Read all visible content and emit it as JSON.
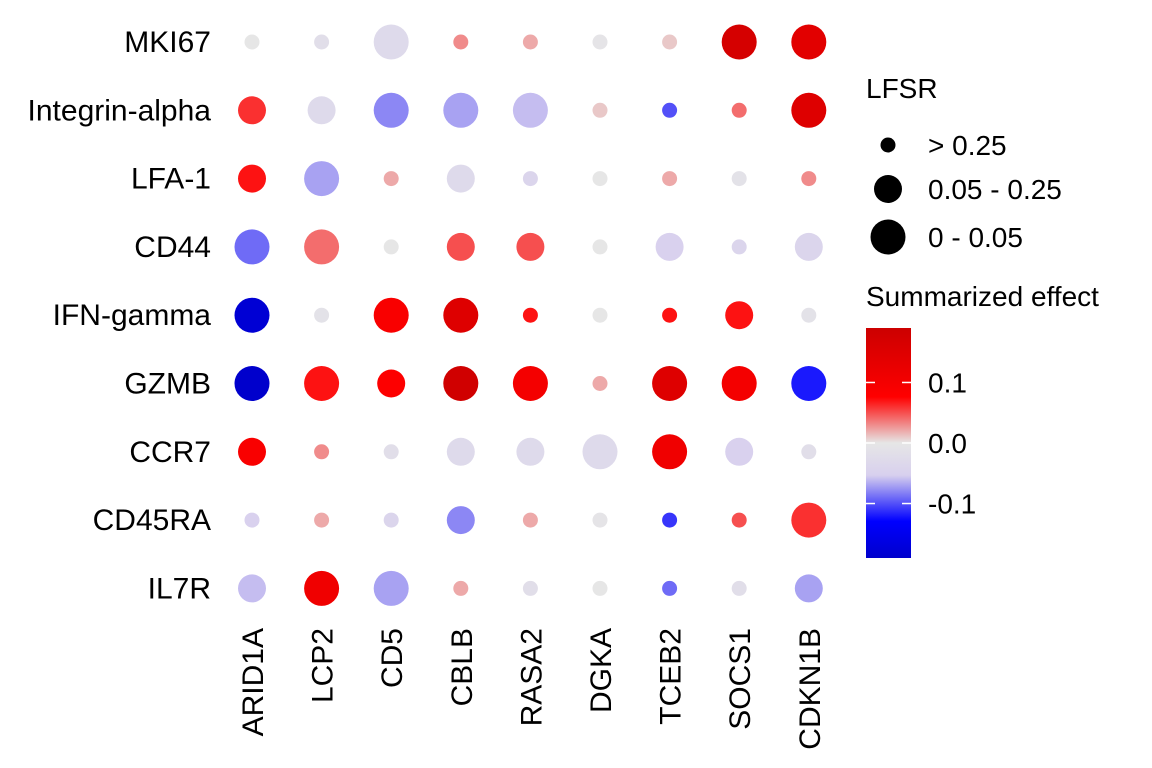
{
  "chart_data": {
    "type": "dot-heatmap",
    "title": "",
    "xlabel": "",
    "ylabel": "",
    "grid": false,
    "legend_position": "right",
    "columns": [
      "ARID1A",
      "LCP2",
      "CD5",
      "CBLB",
      "RASA2",
      "DGKA",
      "TCEB2",
      "SOCS1",
      "CDKN1B"
    ],
    "rows": [
      "MKI67",
      "Integrin-alpha",
      "LFA-1",
      "CD44",
      "IFN-gamma",
      "GZMB",
      "CCR7",
      "CD45RA",
      "IL7R"
    ],
    "effect": [
      [
        0.0,
        -0.02,
        -0.03,
        0.03,
        0.02,
        -0.005,
        0.01,
        0.17,
        0.14
      ],
      [
        0.06,
        -0.03,
        -0.08,
        -0.07,
        -0.06,
        0.01,
        -0.1,
        0.04,
        0.15
      ],
      [
        0.07,
        -0.07,
        0.02,
        -0.03,
        -0.04,
        0.0,
        0.02,
        -0.01,
        0.03
      ],
      [
        -0.09,
        0.04,
        0.0,
        0.05,
        0.05,
        0.0,
        -0.05,
        -0.04,
        -0.04
      ],
      [
        -0.18,
        -0.01,
        0.09,
        0.15,
        0.07,
        0.0,
        0.07,
        0.07,
        -0.01
      ],
      [
        -0.19,
        0.07,
        0.08,
        0.18,
        0.1,
        0.02,
        0.15,
        0.1,
        -0.12
      ],
      [
        0.09,
        0.03,
        -0.02,
        -0.03,
        -0.03,
        -0.03,
        0.11,
        -0.05,
        -0.02
      ],
      [
        -0.05,
        0.02,
        -0.04,
        -0.08,
        0.02,
        -0.005,
        -0.11,
        0.05,
        0.06
      ],
      [
        -0.06,
        0.11,
        -0.07,
        0.02,
        -0.02,
        0.0,
        -0.09,
        -0.02,
        -0.07
      ]
    ],
    "lfsr_class": [
      [
        "> 0.25",
        "> 0.25",
        "0 - 0.05",
        "> 0.25",
        "> 0.25",
        "> 0.25",
        "> 0.25",
        "0 - 0.05",
        "0 - 0.05"
      ],
      [
        "0.05 - 0.25",
        "0.05 - 0.25",
        "0 - 0.05",
        "0 - 0.05",
        "0 - 0.05",
        "> 0.25",
        "> 0.25",
        "> 0.25",
        "0 - 0.05"
      ],
      [
        "0.05 - 0.25",
        "0 - 0.05",
        "> 0.25",
        "0.05 - 0.25",
        "> 0.25",
        "> 0.25",
        "> 0.25",
        "> 0.25",
        "> 0.25"
      ],
      [
        "0 - 0.05",
        "0 - 0.05",
        "> 0.25",
        "0.05 - 0.25",
        "0.05 - 0.25",
        "> 0.25",
        "0.05 - 0.25",
        "> 0.25",
        "0.05 - 0.25"
      ],
      [
        "0 - 0.05",
        "> 0.25",
        "0 - 0.05",
        "0 - 0.05",
        "> 0.25",
        "> 0.25",
        "> 0.25",
        "0.05 - 0.25",
        "> 0.25"
      ],
      [
        "0 - 0.05",
        "0 - 0.05",
        "0.05 - 0.25",
        "0 - 0.05",
        "0 - 0.05",
        "> 0.25",
        "0 - 0.05",
        "0 - 0.05",
        "0 - 0.05"
      ],
      [
        "0.05 - 0.25",
        "> 0.25",
        "> 0.25",
        "0.05 - 0.25",
        "0.05 - 0.25",
        "0 - 0.05",
        "0 - 0.05",
        "0.05 - 0.25",
        "> 0.25"
      ],
      [
        "> 0.25",
        "> 0.25",
        "> 0.25",
        "0.05 - 0.25",
        "> 0.25",
        "> 0.25",
        "> 0.25",
        "> 0.25",
        "0 - 0.05"
      ],
      [
        "0.05 - 0.25",
        "0 - 0.05",
        "0 - 0.05",
        "> 0.25",
        "> 0.25",
        "> 0.25",
        "> 0.25",
        "> 0.25",
        "0.05 - 0.25"
      ]
    ],
    "size_legend": {
      "title": "LFSR",
      "levels": [
        "> 0.25",
        "0.05 - 0.25",
        "0 - 0.05"
      ]
    },
    "color_legend": {
      "title": "Summarized effect",
      "range": [
        -0.19,
        0.19
      ],
      "ticks": [
        0.1,
        0.0,
        -0.1
      ],
      "tick_labels": [
        "0.1",
        "0.0",
        "-0.1"
      ],
      "colors": {
        "low": "#0000cc",
        "mid_low": "#0000ff",
        "lavender": "#d8d0ee",
        "mid": "#e6e6e6",
        "mid_high": "#ff0000",
        "high": "#cc0000"
      }
    }
  }
}
